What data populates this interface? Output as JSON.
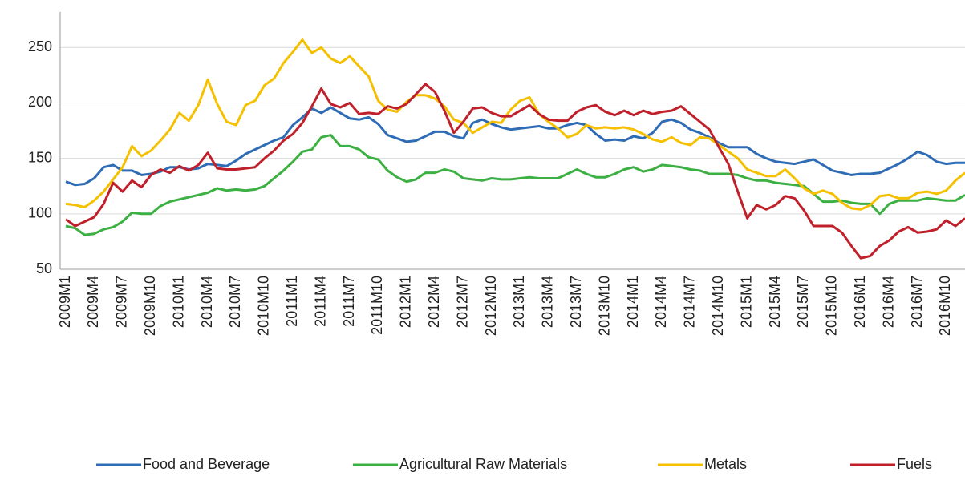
{
  "chart_data": {
    "type": "line",
    "categories": [
      "2009M1",
      null,
      null,
      "2009M4",
      null,
      null,
      "2009M7",
      null,
      null,
      "2009M10",
      null,
      null,
      "2010M1",
      null,
      null,
      "2010M4",
      null,
      null,
      "2010M7",
      null,
      null,
      "2010M10",
      null,
      null,
      "2011M1",
      null,
      null,
      "2011M4",
      null,
      null,
      "2011M7",
      null,
      null,
      "2011M10",
      null,
      null,
      "2012M1",
      null,
      null,
      "2012M4",
      null,
      null,
      "2012M7",
      null,
      null,
      "2012M10",
      null,
      null,
      "2013M1",
      null,
      null,
      "2013M4",
      null,
      null,
      "2013M7",
      null,
      null,
      "2013M10",
      null,
      null,
      "2014M1",
      null,
      null,
      "2014M4",
      null,
      null,
      "2014M7",
      null,
      null,
      "2014M10",
      null,
      null,
      "2015M1",
      null,
      null,
      "2015M4",
      null,
      null,
      "2015M7",
      null,
      null,
      "2015M10",
      null,
      null,
      "2016M1",
      null,
      null,
      "2016M4",
      null,
      null,
      "2016M7",
      null,
      null,
      "2016M10",
      null,
      null
    ],
    "series": [
      {
        "name": "Food and Beverage",
        "color": "#2e6cb5",
        "values": [
          129,
          126,
          127,
          132,
          142,
          144,
          139,
          139,
          135,
          136,
          138,
          142,
          142,
          140,
          141,
          145,
          144,
          143,
          148,
          154,
          158,
          162,
          166,
          169,
          180,
          187,
          195,
          191,
          196,
          191,
          186,
          185,
          187,
          181,
          171,
          168,
          165,
          166,
          170,
          174,
          174,
          170,
          168,
          182,
          185,
          181,
          178,
          176,
          177,
          178,
          179,
          177,
          177,
          180,
          182,
          180,
          172,
          166,
          167,
          166,
          170,
          168,
          173,
          183,
          185,
          182,
          176,
          173,
          169,
          164,
          160,
          160,
          160,
          154,
          150,
          147,
          146,
          145,
          147,
          149,
          144,
          139,
          137,
          135,
          136,
          136,
          137,
          141,
          145,
          150,
          156,
          153,
          147,
          145,
          146,
          146
        ]
      },
      {
        "name": "Agricultural Raw Materials",
        "color": "#3cb043",
        "values": [
          89,
          87,
          81,
          82,
          86,
          88,
          93,
          101,
          100,
          100,
          107,
          111,
          113,
          115,
          117,
          119,
          123,
          121,
          122,
          121,
          122,
          125,
          132,
          139,
          147,
          156,
          158,
          169,
          171,
          161,
          161,
          158,
          151,
          149,
          139,
          133,
          129,
          131,
          137,
          137,
          140,
          138,
          132,
          131,
          130,
          132,
          131,
          131,
          132,
          133,
          132,
          132,
          132,
          136,
          140,
          136,
          133,
          133,
          136,
          140,
          142,
          138,
          140,
          144,
          143,
          142,
          140,
          139,
          136,
          136,
          136,
          135,
          132,
          130,
          130,
          128,
          127,
          126,
          125,
          118,
          111,
          111,
          112,
          110,
          109,
          109,
          100,
          109,
          112,
          112,
          112,
          114,
          113,
          112,
          112,
          117
        ]
      },
      {
        "name": "Metals",
        "color": "#f5c000",
        "values": [
          109,
          108,
          106,
          112,
          120,
          131,
          142,
          161,
          152,
          157,
          166,
          176,
          191,
          184,
          198,
          221,
          199,
          183,
          180,
          198,
          202,
          216,
          222,
          236,
          246,
          257,
          245,
          250,
          240,
          236,
          242,
          233,
          224,
          202,
          194,
          192,
          201,
          207,
          207,
          204,
          197,
          185,
          182,
          173,
          178,
          183,
          182,
          194,
          202,
          205,
          190,
          183,
          177,
          169,
          172,
          180,
          177,
          178,
          177,
          178,
          176,
          172,
          167,
          165,
          169,
          164,
          162,
          169,
          168,
          162,
          156,
          150,
          140,
          137,
          134,
          134,
          140,
          132,
          123,
          118,
          121,
          118,
          110,
          105,
          104,
          108,
          116,
          117,
          114,
          114,
          119,
          120,
          118,
          121,
          130,
          137
        ]
      },
      {
        "name": "Fuels",
        "color": "#c0202a",
        "values": [
          95,
          89,
          93,
          97,
          109,
          128,
          120,
          130,
          124,
          135,
          140,
          137,
          143,
          139,
          144,
          155,
          141,
          140,
          140,
          141,
          142,
          150,
          157,
          166,
          172,
          182,
          197,
          213,
          199,
          196,
          200,
          190,
          191,
          190,
          197,
          195,
          199,
          208,
          217,
          210,
          193,
          173,
          183,
          195,
          196,
          191,
          188,
          188,
          193,
          198,
          190,
          185,
          184,
          184,
          192,
          196,
          198,
          192,
          189,
          193,
          189,
          193,
          190,
          192,
          193,
          197,
          190,
          183,
          176,
          160,
          145,
          120,
          96,
          108,
          104,
          108,
          116,
          114,
          103,
          89,
          89,
          89,
          83,
          71,
          60,
          62,
          71,
          76,
          84,
          88,
          83,
          84,
          86,
          94,
          89,
          96
        ]
      }
    ],
    "ylim": [
      50,
      282
    ],
    "yticks": [
      50,
      100,
      150,
      200,
      250
    ],
    "grid": true,
    "legend": "bottom"
  }
}
